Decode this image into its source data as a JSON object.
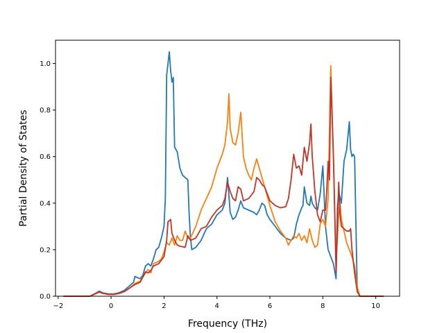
{
  "chart_data": {
    "type": "line",
    "title": "",
    "xlabel": "Frequency (THz)",
    "ylabel": "Partial Density of States",
    "xlim": [
      -2.1,
      10.9
    ],
    "ylim": [
      0.0,
      1.1
    ],
    "xticks": [
      -2,
      0,
      2,
      4,
      6,
      8,
      10
    ],
    "yticks": [
      0.0,
      0.2,
      0.4,
      0.6,
      0.8,
      1.0
    ],
    "xtick_labels": [
      "−2",
      "0",
      "2",
      "4",
      "6",
      "8",
      "10"
    ],
    "ytick_labels": [
      "0.0",
      "0.2",
      "0.4",
      "0.6",
      "0.8",
      "1.0"
    ],
    "grid": false,
    "legend": "none",
    "series": [
      {
        "color": "#1f77b4",
        "points": [
          [
            -1.8,
            0
          ],
          [
            -0.8,
            0
          ],
          [
            -0.6,
            0.012
          ],
          [
            -0.45,
            0.022
          ],
          [
            -0.3,
            0.014
          ],
          [
            -0.1,
            0.01
          ],
          [
            0.1,
            0.01
          ],
          [
            0.3,
            0.015
          ],
          [
            0.5,
            0.025
          ],
          [
            0.7,
            0.045
          ],
          [
            0.85,
            0.06
          ],
          [
            0.9,
            0.085
          ],
          [
            1.0,
            0.08
          ],
          [
            1.1,
            0.075
          ],
          [
            1.2,
            0.09
          ],
          [
            1.3,
            0.13
          ],
          [
            1.4,
            0.14
          ],
          [
            1.5,
            0.13
          ],
          [
            1.6,
            0.16
          ],
          [
            1.7,
            0.2
          ],
          [
            1.8,
            0.21
          ],
          [
            1.9,
            0.25
          ],
          [
            2.0,
            0.3
          ],
          [
            2.05,
            0.42
          ],
          [
            2.1,
            0.95
          ],
          [
            2.15,
            1.0
          ],
          [
            2.2,
            1.05
          ],
          [
            2.25,
            0.97
          ],
          [
            2.3,
            0.92
          ],
          [
            2.35,
            0.94
          ],
          [
            2.4,
            0.64
          ],
          [
            2.5,
            0.62
          ],
          [
            2.6,
            0.55
          ],
          [
            2.7,
            0.52
          ],
          [
            2.8,
            0.51
          ],
          [
            2.9,
            0.5
          ],
          [
            2.95,
            0.35
          ],
          [
            3.0,
            0.25
          ],
          [
            3.05,
            0.2
          ],
          [
            3.2,
            0.21
          ],
          [
            3.4,
            0.24
          ],
          [
            3.6,
            0.29
          ],
          [
            3.8,
            0.31
          ],
          [
            4.0,
            0.35
          ],
          [
            4.2,
            0.37
          ],
          [
            4.3,
            0.4
          ],
          [
            4.4,
            0.51
          ],
          [
            4.5,
            0.36
          ],
          [
            4.6,
            0.33
          ],
          [
            4.7,
            0.34
          ],
          [
            4.8,
            0.37
          ],
          [
            4.9,
            0.41
          ],
          [
            5.0,
            0.38
          ],
          [
            5.2,
            0.37
          ],
          [
            5.4,
            0.36
          ],
          [
            5.5,
            0.35
          ],
          [
            5.6,
            0.37
          ],
          [
            5.7,
            0.4
          ],
          [
            5.8,
            0.39
          ],
          [
            5.9,
            0.35
          ],
          [
            6.0,
            0.33
          ],
          [
            6.2,
            0.3
          ],
          [
            6.4,
            0.27
          ],
          [
            6.6,
            0.25
          ],
          [
            6.8,
            0.24
          ],
          [
            6.9,
            0.25
          ],
          [
            7.0,
            0.31
          ],
          [
            7.1,
            0.35
          ],
          [
            7.2,
            0.38
          ],
          [
            7.25,
            0.39
          ],
          [
            7.3,
            0.47
          ],
          [
            7.4,
            0.4
          ],
          [
            7.5,
            0.39
          ],
          [
            7.55,
            0.43
          ],
          [
            7.6,
            0.4
          ],
          [
            7.7,
            0.38
          ],
          [
            7.8,
            0.37
          ],
          [
            7.9,
            0.44
          ],
          [
            8.0,
            0.56
          ],
          [
            8.1,
            0.3
          ],
          [
            8.2,
            0.2
          ],
          [
            8.3,
            0.17
          ],
          [
            8.4,
            0.14
          ],
          [
            8.5,
            0.075
          ],
          [
            8.55,
            0.38
          ],
          [
            8.6,
            0.45
          ],
          [
            8.7,
            0.4
          ],
          [
            8.8,
            0.58
          ],
          [
            8.9,
            0.63
          ],
          [
            9.0,
            0.75
          ],
          [
            9.05,
            0.63
          ],
          [
            9.1,
            0.6
          ],
          [
            9.15,
            0.61
          ],
          [
            9.2,
            0.6
          ],
          [
            9.3,
            0.02
          ],
          [
            9.4,
            0
          ],
          [
            10.3,
            0
          ]
        ]
      },
      {
        "color": "#ff7f0e",
        "points": [
          [
            -1.8,
            0
          ],
          [
            -0.8,
            0
          ],
          [
            -0.6,
            0.01
          ],
          [
            -0.45,
            0.018
          ],
          [
            -0.3,
            0.012
          ],
          [
            -0.1,
            0.008
          ],
          [
            0.1,
            0.008
          ],
          [
            0.3,
            0.012
          ],
          [
            0.5,
            0.02
          ],
          [
            0.7,
            0.035
          ],
          [
            0.9,
            0.055
          ],
          [
            1.1,
            0.065
          ],
          [
            1.3,
            0.1
          ],
          [
            1.4,
            0.115
          ],
          [
            1.5,
            0.1
          ],
          [
            1.6,
            0.14
          ],
          [
            1.8,
            0.15
          ],
          [
            1.9,
            0.16
          ],
          [
            2.0,
            0.19
          ],
          [
            2.1,
            0.23
          ],
          [
            2.2,
            0.22
          ],
          [
            2.3,
            0.25
          ],
          [
            2.4,
            0.22
          ],
          [
            2.5,
            0.26
          ],
          [
            2.6,
            0.24
          ],
          [
            2.7,
            0.24
          ],
          [
            2.8,
            0.28
          ],
          [
            2.9,
            0.25
          ],
          [
            3.0,
            0.25
          ],
          [
            3.2,
            0.3
          ],
          [
            3.4,
            0.37
          ],
          [
            3.6,
            0.42
          ],
          [
            3.8,
            0.47
          ],
          [
            4.0,
            0.55
          ],
          [
            4.2,
            0.61
          ],
          [
            4.3,
            0.65
          ],
          [
            4.4,
            0.75
          ],
          [
            4.45,
            0.87
          ],
          [
            4.5,
            0.72
          ],
          [
            4.6,
            0.66
          ],
          [
            4.7,
            0.65
          ],
          [
            4.8,
            0.7
          ],
          [
            4.9,
            0.79
          ],
          [
            5.0,
            0.6
          ],
          [
            5.1,
            0.55
          ],
          [
            5.2,
            0.52
          ],
          [
            5.3,
            0.5
          ],
          [
            5.4,
            0.55
          ],
          [
            5.5,
            0.59
          ],
          [
            5.6,
            0.55
          ],
          [
            5.8,
            0.47
          ],
          [
            6.0,
            0.39
          ],
          [
            6.2,
            0.32
          ],
          [
            6.4,
            0.28
          ],
          [
            6.6,
            0.25
          ],
          [
            6.7,
            0.22
          ],
          [
            6.8,
            0.24
          ],
          [
            6.9,
            0.26
          ],
          [
            7.0,
            0.25
          ],
          [
            7.1,
            0.27
          ],
          [
            7.2,
            0.24
          ],
          [
            7.3,
            0.26
          ],
          [
            7.4,
            0.23
          ],
          [
            7.5,
            0.29
          ],
          [
            7.6,
            0.24
          ],
          [
            7.7,
            0.21
          ],
          [
            7.8,
            0.22
          ],
          [
            7.9,
            0.31
          ],
          [
            8.0,
            0.33
          ],
          [
            8.1,
            0.3
          ],
          [
            8.2,
            0.42
          ],
          [
            8.3,
            0.99
          ],
          [
            8.4,
            0.6
          ],
          [
            8.5,
            0.15
          ],
          [
            8.6,
            0.35
          ],
          [
            8.65,
            0.4
          ],
          [
            8.7,
            0.33
          ],
          [
            8.8,
            0.28
          ],
          [
            8.9,
            0.23
          ],
          [
            9.0,
            0.2
          ],
          [
            9.1,
            0.17
          ],
          [
            9.2,
            0.13
          ],
          [
            9.3,
            0.04
          ],
          [
            9.4,
            0
          ],
          [
            10.3,
            0
          ]
        ]
      },
      {
        "color": "#c43226",
        "points": [
          [
            -1.8,
            0
          ],
          [
            -0.8,
            0
          ],
          [
            -0.6,
            0.01
          ],
          [
            -0.45,
            0.018
          ],
          [
            -0.3,
            0.012
          ],
          [
            -0.1,
            0.008
          ],
          [
            0.1,
            0.008
          ],
          [
            0.3,
            0.012
          ],
          [
            0.5,
            0.02
          ],
          [
            0.7,
            0.035
          ],
          [
            0.9,
            0.05
          ],
          [
            1.1,
            0.06
          ],
          [
            1.3,
            0.105
          ],
          [
            1.4,
            0.1
          ],
          [
            1.5,
            0.11
          ],
          [
            1.6,
            0.13
          ],
          [
            1.8,
            0.14
          ],
          [
            1.9,
            0.155
          ],
          [
            2.0,
            0.17
          ],
          [
            2.1,
            0.24
          ],
          [
            2.15,
            0.32
          ],
          [
            2.25,
            0.33
          ],
          [
            2.3,
            0.27
          ],
          [
            2.4,
            0.24
          ],
          [
            2.5,
            0.22
          ],
          [
            2.6,
            0.215
          ],
          [
            2.8,
            0.21
          ],
          [
            2.9,
            0.26
          ],
          [
            3.0,
            0.24
          ],
          [
            3.2,
            0.25
          ],
          [
            3.4,
            0.29
          ],
          [
            3.6,
            0.3
          ],
          [
            3.8,
            0.34
          ],
          [
            4.0,
            0.37
          ],
          [
            4.2,
            0.39
          ],
          [
            4.3,
            0.42
          ],
          [
            4.4,
            0.49
          ],
          [
            4.5,
            0.45
          ],
          [
            4.6,
            0.42
          ],
          [
            4.7,
            0.41
          ],
          [
            4.8,
            0.47
          ],
          [
            4.9,
            0.46
          ],
          [
            5.0,
            0.41
          ],
          [
            5.2,
            0.42
          ],
          [
            5.4,
            0.45
          ],
          [
            5.5,
            0.51
          ],
          [
            5.6,
            0.5
          ],
          [
            5.7,
            0.48
          ],
          [
            5.8,
            0.47
          ],
          [
            6.0,
            0.41
          ],
          [
            6.2,
            0.39
          ],
          [
            6.4,
            0.38
          ],
          [
            6.6,
            0.385
          ],
          [
            6.7,
            0.42
          ],
          [
            6.8,
            0.5
          ],
          [
            6.9,
            0.61
          ],
          [
            7.0,
            0.55
          ],
          [
            7.1,
            0.56
          ],
          [
            7.2,
            0.52
          ],
          [
            7.3,
            0.64
          ],
          [
            7.4,
            0.58
          ],
          [
            7.5,
            0.66
          ],
          [
            7.55,
            0.74
          ],
          [
            7.6,
            0.6
          ],
          [
            7.7,
            0.45
          ],
          [
            7.8,
            0.35
          ],
          [
            7.9,
            0.32
          ],
          [
            8.0,
            0.37
          ],
          [
            8.1,
            0.37
          ],
          [
            8.15,
            0.46
          ],
          [
            8.2,
            0.58
          ],
          [
            8.25,
            0.5
          ],
          [
            8.3,
            0.94
          ],
          [
            8.4,
            0.6
          ],
          [
            8.5,
            0.1
          ],
          [
            8.55,
            0.3
          ],
          [
            8.6,
            0.49
          ],
          [
            8.65,
            0.35
          ],
          [
            8.7,
            0.3
          ],
          [
            8.8,
            0.29
          ],
          [
            8.9,
            0.28
          ],
          [
            9.0,
            0.28
          ],
          [
            9.05,
            0.29
          ],
          [
            9.1,
            0.2
          ],
          [
            9.2,
            0.1
          ],
          [
            9.3,
            0.02
          ],
          [
            9.4,
            0
          ],
          [
            10.3,
            0
          ]
        ]
      }
    ]
  }
}
